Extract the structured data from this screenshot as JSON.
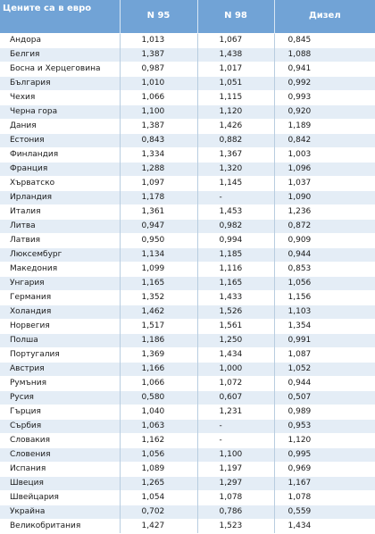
{
  "table": {
    "headers": [
      "Цените са в евро",
      "N 95",
      "N 98",
      "Дизел"
    ],
    "rows": [
      [
        "Андора",
        "1,013",
        "1,067",
        "0,845"
      ],
      [
        "Белгия",
        "1,387",
        "1,438",
        "1,088"
      ],
      [
        "Босна и Херцеговина",
        "0,987",
        "1,017",
        "0,941"
      ],
      [
        "България",
        "1,010",
        "1,051",
        "0,992"
      ],
      [
        "Чехия",
        "1,066",
        "1,115",
        "0,993"
      ],
      [
        "Черна гора",
        "1,100",
        "1,120",
        "0,920"
      ],
      [
        "Дания",
        "1,387",
        "1,426",
        "1,189"
      ],
      [
        "Естония",
        "0,843",
        "0,882",
        "0,842"
      ],
      [
        "Финландия",
        "1,334",
        "1,367",
        "1,003"
      ],
      [
        "Франция",
        "1,288",
        "1,320",
        "1,096"
      ],
      [
        "Хърватско",
        "1,097",
        "1,145",
        "1,037"
      ],
      [
        "Ирландия",
        "1,178",
        "-",
        "1,090"
      ],
      [
        "Италия",
        "1,361",
        "1,453",
        "1,236"
      ],
      [
        "Литва",
        "0,947",
        "0,982",
        "0,872"
      ],
      [
        "Латвия",
        "0,950",
        "0,994",
        "0,909"
      ],
      [
        "Люксембург",
        "1,134",
        "1,185",
        "0,944"
      ],
      [
        "Македония",
        "1,099",
        "1,116",
        "0,853"
      ],
      [
        "Унгария",
        "1,165",
        "1,165",
        "1,056"
      ],
      [
        "Германия",
        "1,352",
        "1,433",
        "1,156"
      ],
      [
        "Холандия",
        "1,462",
        "1,526",
        "1,103"
      ],
      [
        "Норвегия",
        "1,517",
        "1,561",
        "1,354"
      ],
      [
        "Полша",
        "1,186",
        "1,250",
        "0,991"
      ],
      [
        "Португалия",
        "1,369",
        "1,434",
        "1,087"
      ],
      [
        "Австрия",
        "1,166",
        "1,000",
        "1,052"
      ],
      [
        "Румъния",
        "1,066",
        "1,072",
        "0,944"
      ],
      [
        "Русия",
        "0,580",
        "0,607",
        "0,507"
      ],
      [
        "Гърция",
        "1,040",
        "1,231",
        "0,989"
      ],
      [
        "Сърбия",
        "1,063",
        "-",
        "0,953"
      ],
      [
        "Словакия",
        "1,162",
        "-",
        "1,120"
      ],
      [
        "Словения",
        "1,056",
        "1,100",
        "0,995"
      ],
      [
        "Испания",
        "1,089",
        "1,197",
        "0,969"
      ],
      [
        "Швеция",
        "1,265",
        "1,297",
        "1,167"
      ],
      [
        "Швейцария",
        "1,054",
        "1,078",
        "1,078"
      ],
      [
        "Украйна",
        "0,702",
        "0,786",
        "0,559"
      ],
      [
        "Великобритания",
        "1,427",
        "1,523",
        "1,434"
      ]
    ]
  },
  "colors": {
    "header_bg": "#71a3d6",
    "row_alt_bg": "#e4edf6",
    "row_bg": "#ffffff"
  }
}
